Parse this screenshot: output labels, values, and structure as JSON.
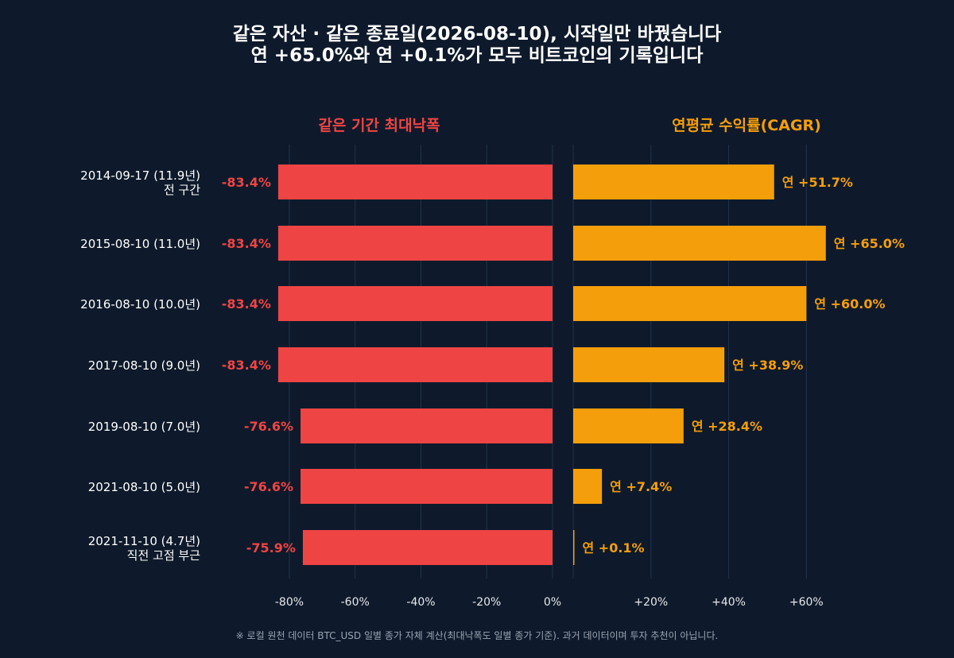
{
  "chart_data": {
    "type": "bar",
    "title_lines": [
      "같은 자산 · 같은 종료일(2026-08-10), 시작일만 바꿨습니다",
      "연 +65.0%와 연 +0.1%가 모두 비트코인의 기록입니다"
    ],
    "categories": [
      [
        "2014-09-17 (11.9년)",
        "전 구간"
      ],
      [
        "2015-08-10 (11.0년)"
      ],
      [
        "2016-08-10 (10.0년)"
      ],
      [
        "2017-08-10 (9.0년)"
      ],
      [
        "2019-08-10 (7.0년)"
      ],
      [
        "2021-08-10 (5.0년)"
      ],
      [
        "2021-11-10 (4.7년)",
        "직전 고점 부근"
      ]
    ],
    "panels": [
      {
        "name": "같은 기간 최대낙폭",
        "color": "#ef4444",
        "values": [
          -83.4,
          -83.4,
          -83.4,
          -83.4,
          -76.6,
          -76.6,
          -75.9
        ],
        "labels": [
          "-83.4%",
          "-83.4%",
          "-83.4%",
          "-83.4%",
          "-76.6%",
          "-76.6%",
          "-75.9%"
        ],
        "xlim": [
          -87,
          0
        ],
        "ticks": [
          -80,
          -60,
          -40,
          -20,
          0
        ],
        "tick_labels": [
          "-80%",
          "-60%",
          "-40%",
          "-20%",
          "0%"
        ]
      },
      {
        "name": "연평균 수익률(CAGR)",
        "color": "#f59e0b",
        "values": [
          51.7,
          65.0,
          60.0,
          38.9,
          28.4,
          7.4,
          0.1
        ],
        "labels": [
          "연 +51.7%",
          "연 +65.0%",
          "연 +60.0%",
          "연 +38.9%",
          "연 +28.4%",
          "연 +7.4%",
          "연 +0.1%"
        ],
        "xlim": [
          0,
          72
        ],
        "ticks": [
          20,
          40,
          60
        ],
        "tick_labels": [
          "+20%",
          "+40%",
          "+60%"
        ]
      }
    ],
    "grid": true,
    "footnote": "※ 로컬 원천 데이터 BTC_USD 일별 종가 자체 계산(최대낙폭도 일별 종가 기준). 과거 데이터이며 투자 추천이 아닙니다."
  }
}
